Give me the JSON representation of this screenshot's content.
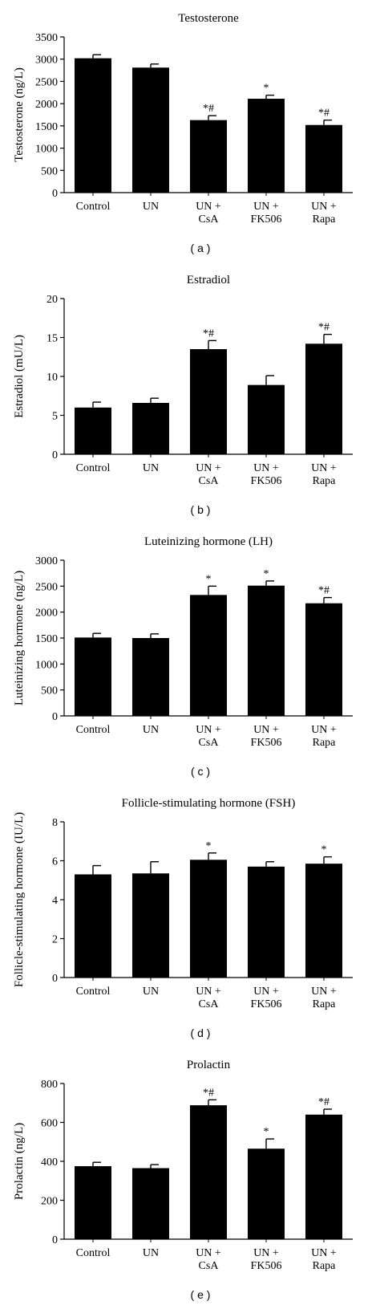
{
  "colors": {
    "bar": "#000000",
    "axis": "#000000",
    "background": "#ffffff"
  },
  "chart_data": [
    {
      "type": "bar",
      "title": "Testosterone",
      "ylabel": "Testosterone (ng/L)",
      "panel_label": "( a )",
      "categories": [
        [
          "Control"
        ],
        [
          "UN"
        ],
        [
          "UN +",
          "CsA"
        ],
        [
          "UN +",
          "FK506"
        ],
        [
          "UN +",
          "Rapa"
        ]
      ],
      "values": [
        3020,
        2810,
        1630,
        2110,
        1520
      ],
      "errors": [
        80,
        80,
        100,
        80,
        110
      ],
      "annotations": [
        "",
        "",
        "*#",
        "*",
        "*#"
      ],
      "ylim": [
        0,
        3500
      ],
      "yticks": [
        0,
        500,
        1000,
        1500,
        2000,
        2500,
        3000,
        3500
      ],
      "grid": false
    },
    {
      "type": "bar",
      "title": "Estradiol",
      "ylabel": "Estradiol (mU/L)",
      "panel_label": "( b )",
      "categories": [
        [
          "Control"
        ],
        [
          "UN"
        ],
        [
          "UN +",
          "CsA"
        ],
        [
          "UN +",
          "FK506"
        ],
        [
          "UN +",
          "Rapa"
        ]
      ],
      "values": [
        6.0,
        6.6,
        13.5,
        8.9,
        14.2
      ],
      "errors": [
        0.7,
        0.6,
        1.1,
        1.2,
        1.2
      ],
      "annotations": [
        "",
        "",
        "*#",
        "",
        "*#"
      ],
      "ylim": [
        0,
        20
      ],
      "yticks": [
        0,
        5,
        10,
        15,
        20
      ],
      "grid": false
    },
    {
      "type": "bar",
      "title": "Luteinizing hormone (LH)",
      "ylabel": "Luteinizing hormone (ng/L)",
      "panel_label": "( c )",
      "categories": [
        [
          "Control"
        ],
        [
          "UN"
        ],
        [
          "UN +",
          "CsA"
        ],
        [
          "UN +",
          "FK506"
        ],
        [
          "UN +",
          "Rapa"
        ]
      ],
      "values": [
        1510,
        1500,
        2330,
        2510,
        2170
      ],
      "errors": [
        80,
        80,
        170,
        90,
        110
      ],
      "annotations": [
        "",
        "",
        "*",
        "*",
        "*#"
      ],
      "ylim": [
        0,
        3000
      ],
      "yticks": [
        0,
        500,
        1000,
        1500,
        2000,
        2500,
        3000
      ],
      "grid": false
    },
    {
      "type": "bar",
      "title": "Follicle-stimulating hormone (FSH)",
      "ylabel": "Follicle-stimulating hormone (IU/L)",
      "panel_label": "( d )",
      "categories": [
        [
          "Control"
        ],
        [
          "UN"
        ],
        [
          "UN +",
          "CsA"
        ],
        [
          "UN +",
          "FK506"
        ],
        [
          "UN +",
          "Rapa"
        ]
      ],
      "values": [
        5.3,
        5.35,
        6.05,
        5.7,
        5.85
      ],
      "errors": [
        0.45,
        0.6,
        0.35,
        0.25,
        0.35
      ],
      "annotations": [
        "",
        "",
        "*",
        "",
        "*"
      ],
      "ylim": [
        0,
        8
      ],
      "yticks": [
        0,
        2,
        4,
        6,
        8
      ],
      "grid": false
    },
    {
      "type": "bar",
      "title": "Prolactin",
      "ylabel": "Prolactin (ng/L)",
      "panel_label": "( e )",
      "categories": [
        [
          "Control"
        ],
        [
          "UN"
        ],
        [
          "UN +",
          "CsA"
        ],
        [
          "UN +",
          "FK506"
        ],
        [
          "UN +",
          "Rapa"
        ]
      ],
      "values": [
        375,
        365,
        688,
        465,
        640
      ],
      "errors": [
        20,
        18,
        28,
        50,
        28
      ],
      "annotations": [
        "",
        "",
        "*#",
        "*",
        "*#"
      ],
      "ylim": [
        0,
        800
      ],
      "yticks": [
        0,
        200,
        400,
        600,
        800
      ],
      "grid": false
    }
  ]
}
